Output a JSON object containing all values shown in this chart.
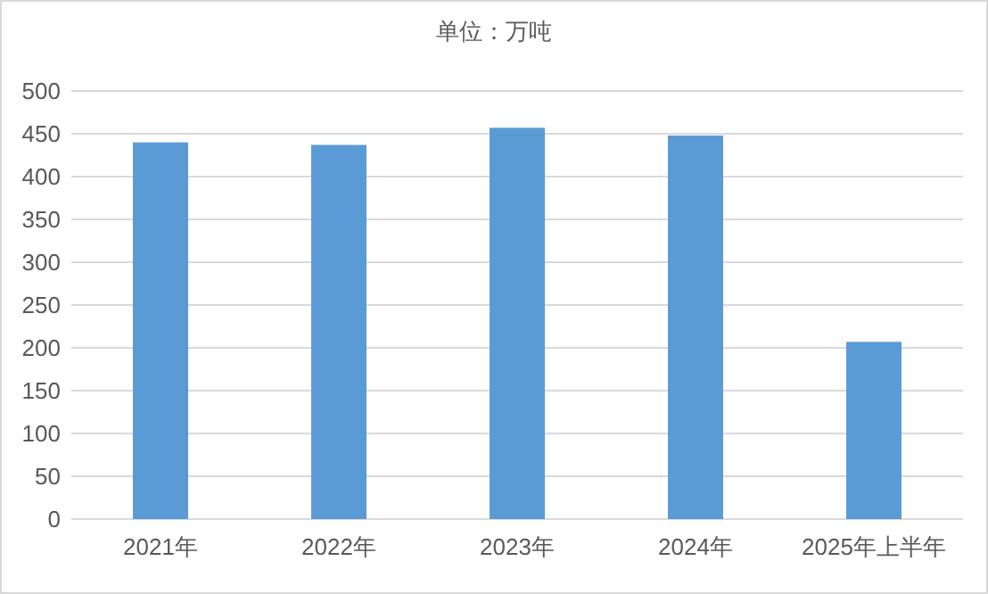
{
  "chart_data": {
    "type": "bar",
    "title": "单位：万吨",
    "categories": [
      "2021年",
      "2022年",
      "2023年",
      "2024年",
      "2025年上半年"
    ],
    "values": [
      440,
      437,
      457,
      448,
      207
    ],
    "color": "#5b9bd5",
    "ylim": [
      0,
      500
    ],
    "yticks": [
      0,
      50,
      100,
      150,
      200,
      250,
      300,
      350,
      400,
      450,
      500
    ],
    "grid": "y"
  }
}
